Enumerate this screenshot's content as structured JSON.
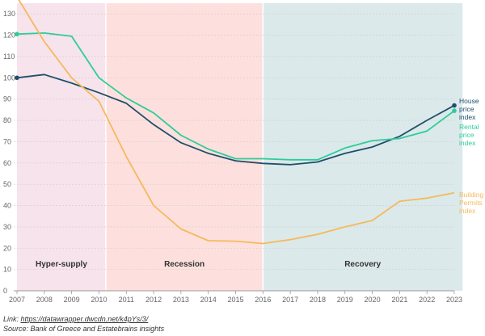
{
  "chart_data": {
    "type": "line",
    "x": [
      2007,
      2008,
      2009,
      2010,
      2011,
      2012,
      2013,
      2014,
      2015,
      2016,
      2017,
      2018,
      2019,
      2020,
      2021,
      2022,
      2023
    ],
    "ylim": [
      0,
      135
    ],
    "yticks": [
      0,
      10,
      20,
      30,
      40,
      50,
      60,
      70,
      80,
      90,
      100,
      110,
      120,
      130
    ],
    "grid": true,
    "phases": [
      {
        "label": "Hyper-supply",
        "start": 2007,
        "end": 2010.25,
        "color": "#f7e3ec"
      },
      {
        "label": "Recession",
        "start": 2010.25,
        "end": 2016,
        "color": "#fde0dd"
      },
      {
        "label": "Recovery",
        "start": 2016,
        "end": 2023.3,
        "color": "#dbe9ea"
      }
    ],
    "series": [
      {
        "name": "House price index",
        "label_lines": [
          "House",
          "price",
          "index"
        ],
        "color": "#1f4e6b",
        "markers": true,
        "values": [
          100,
          101.5,
          97.5,
          93,
          88,
          78,
          69.5,
          64.5,
          61,
          59.8,
          59.2,
          60.5,
          64.5,
          67.5,
          72.5,
          80,
          87
        ]
      },
      {
        "name": "Rental price index",
        "label_lines": [
          "Rental",
          "price",
          "index"
        ],
        "color": "#2ecc9a",
        "markers": true,
        "values": [
          120.5,
          121,
          119.5,
          100,
          90.5,
          83.5,
          73,
          66.5,
          62,
          62,
          61.5,
          61.5,
          67,
          70.5,
          71.5,
          75,
          84.5
        ]
      },
      {
        "name": "Building Permits index",
        "label_lines": [
          "Building",
          "Permits",
          "index"
        ],
        "color": "#f5b95c",
        "markers": false,
        "values": [
          138,
          117,
          100,
          89,
          63,
          40,
          29,
          23.5,
          23.3,
          22.2,
          24,
          26.5,
          30,
          33,
          42,
          43.5,
          46
        ]
      }
    ]
  },
  "footer": {
    "link_prefix": "Link: ",
    "link_text": "https://datawrapper.dwcdn.net/k4pYs/3/",
    "source": "Source: Bank of Greece and Estatebrains insights"
  }
}
